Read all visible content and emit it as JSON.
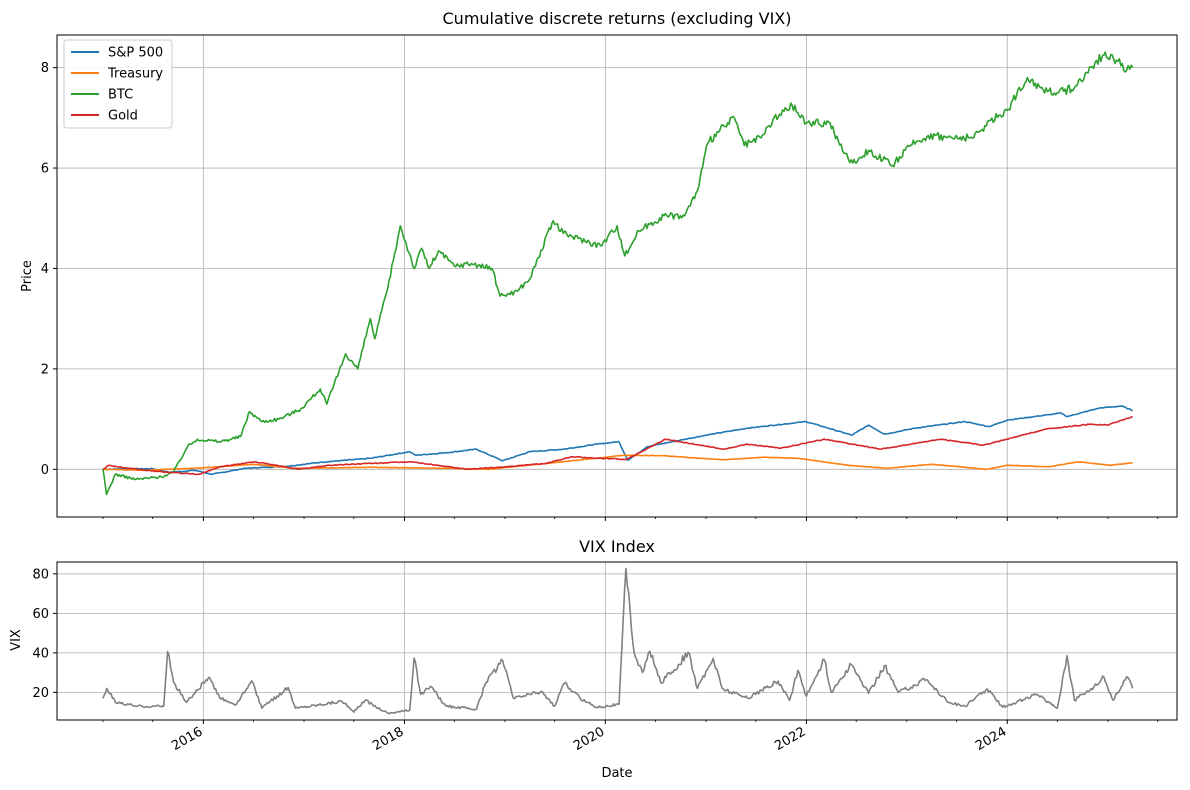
{
  "chart_data": [
    {
      "type": "line",
      "title": "Cumulative discrete returns (excluding VIX)",
      "xlabel": "",
      "ylabel": "Price",
      "ylim": [
        -0.95,
        8.65
      ],
      "xlim": [
        "2014-07-18",
        "2025-09-09"
      ],
      "yticks": [
        0,
        2,
        4,
        6,
        8
      ],
      "grid": true,
      "legend": "top-left",
      "series": [
        {
          "name": "S&P 500",
          "color": "#1f77b4",
          "points": [
            [
              "2015-01-01",
              0.0
            ],
            [
              "2015-04-01",
              0.01
            ],
            [
              "2015-07-01",
              0.01
            ],
            [
              "2015-09-01",
              -0.06
            ],
            [
              "2015-12-01",
              -0.02
            ],
            [
              "2016-02-01",
              -0.1
            ],
            [
              "2016-06-01",
              0.02
            ],
            [
              "2016-11-01",
              0.06
            ],
            [
              "2017-03-01",
              0.14
            ],
            [
              "2017-09-01",
              0.22
            ],
            [
              "2018-01-20",
              0.35
            ],
            [
              "2018-02-10",
              0.28
            ],
            [
              "2018-06-01",
              0.33
            ],
            [
              "2018-09-20",
              0.4
            ],
            [
              "2018-12-24",
              0.17
            ],
            [
              "2019-04-01",
              0.35
            ],
            [
              "2019-08-01",
              0.4
            ],
            [
              "2019-12-01",
              0.5
            ],
            [
              "2020-02-19",
              0.55
            ],
            [
              "2020-03-23",
              0.18
            ],
            [
              "2020-06-01",
              0.45
            ],
            [
              "2020-09-01",
              0.55
            ],
            [
              "2021-01-01",
              0.68
            ],
            [
              "2021-06-01",
              0.82
            ],
            [
              "2021-12-31",
              0.95
            ],
            [
              "2022-06-15",
              0.68
            ],
            [
              "2022-08-15",
              0.88
            ],
            [
              "2022-10-12",
              0.7
            ],
            [
              "2023-02-01",
              0.82
            ],
            [
              "2023-07-31",
              0.95
            ],
            [
              "2023-10-27",
              0.85
            ],
            [
              "2024-01-01",
              0.98
            ],
            [
              "2024-07-16",
              1.12
            ],
            [
              "2024-08-05",
              1.05
            ],
            [
              "2024-12-01",
              1.22
            ],
            [
              "2025-02-19",
              1.26
            ],
            [
              "2025-04-01",
              1.17
            ]
          ]
        },
        {
          "name": "Treasury",
          "color": "#ff7f0e",
          "points": [
            [
              "2015-01-01",
              0.0
            ],
            [
              "2015-06-01",
              -0.02
            ],
            [
              "2016-01-01",
              0.03
            ],
            [
              "2016-07-01",
              0.1
            ],
            [
              "2016-12-01",
              0.02
            ],
            [
              "2017-09-01",
              0.04
            ],
            [
              "2018-06-01",
              0.02
            ],
            [
              "2018-11-01",
              0.0
            ],
            [
              "2019-08-01",
              0.15
            ],
            [
              "2020-03-09",
              0.28
            ],
            [
              "2020-08-01",
              0.27
            ],
            [
              "2021-03-01",
              0.19
            ],
            [
              "2021-08-01",
              0.24
            ],
            [
              "2021-12-01",
              0.22
            ],
            [
              "2022-06-01",
              0.08
            ],
            [
              "2022-10-20",
              0.02
            ],
            [
              "2023-04-01",
              0.1
            ],
            [
              "2023-10-19",
              0.0
            ],
            [
              "2024-01-01",
              0.08
            ],
            [
              "2024-06-01",
              0.05
            ],
            [
              "2024-09-15",
              0.15
            ],
            [
              "2025-01-10",
              0.08
            ],
            [
              "2025-04-01",
              0.13
            ]
          ]
        },
        {
          "name": "BTC",
          "color": "#2ca02c",
          "points": [
            [
              "2015-01-01",
              0.0
            ],
            [
              "2015-01-14",
              -0.5
            ],
            [
              "2015-02-15",
              -0.1
            ],
            [
              "2015-05-01",
              -0.2
            ],
            [
              "2015-08-01",
              -0.15
            ],
            [
              "2015-09-15",
              -0.05
            ],
            [
              "2015-11-04",
              0.45
            ],
            [
              "2015-12-10",
              0.6
            ],
            [
              "2016-03-01",
              0.55
            ],
            [
              "2016-05-15",
              0.65
            ],
            [
              "2016-06-17",
              1.15
            ],
            [
              "2016-08-01",
              0.95
            ],
            [
              "2016-10-01",
              1.0
            ],
            [
              "2016-12-20",
              1.2
            ],
            [
              "2017-03-01",
              1.6
            ],
            [
              "2017-03-25",
              1.3
            ],
            [
              "2017-06-01",
              2.3
            ],
            [
              "2017-07-15",
              2.0
            ],
            [
              "2017-08-30",
              3.0
            ],
            [
              "2017-09-15",
              2.6
            ],
            [
              "2017-11-01",
              3.6
            ],
            [
              "2017-12-17",
              4.85
            ],
            [
              "2018-02-06",
              4.0
            ],
            [
              "2018-03-05",
              4.4
            ],
            [
              "2018-04-01",
              4.0
            ],
            [
              "2018-05-05",
              4.35
            ],
            [
              "2018-07-01",
              4.05
            ],
            [
              "2018-09-01",
              4.1
            ],
            [
              "2018-11-15",
              4.0
            ],
            [
              "2018-12-15",
              3.45
            ],
            [
              "2019-02-15",
              3.55
            ],
            [
              "2019-04-02",
              3.8
            ],
            [
              "2019-06-26",
              4.95
            ],
            [
              "2019-08-01",
              4.7
            ],
            [
              "2019-09-24",
              4.6
            ],
            [
              "2019-12-15",
              4.45
            ],
            [
              "2020-02-13",
              4.85
            ],
            [
              "2020-03-12",
              4.25
            ],
            [
              "2020-05-01",
              4.75
            ],
            [
              "2020-08-01",
              5.05
            ],
            [
              "2020-10-15",
              5.05
            ],
            [
              "2020-12-01",
              5.55
            ],
            [
              "2021-01-08",
              6.5
            ],
            [
              "2021-02-20",
              6.75
            ],
            [
              "2021-04-14",
              7.0
            ],
            [
              "2021-05-20",
              6.45
            ],
            [
              "2021-07-20",
              6.6
            ],
            [
              "2021-09-01",
              6.95
            ],
            [
              "2021-11-10",
              7.25
            ],
            [
              "2021-12-31",
              6.9
            ],
            [
              "2022-03-28",
              6.9
            ],
            [
              "2022-05-12",
              6.35
            ],
            [
              "2022-06-18",
              6.1
            ],
            [
              "2022-08-15",
              6.35
            ],
            [
              "2022-11-10",
              6.05
            ],
            [
              "2023-01-15",
              6.45
            ],
            [
              "2023-03-20",
              6.65
            ],
            [
              "2023-06-15",
              6.6
            ],
            [
              "2023-09-01",
              6.6
            ],
            [
              "2023-11-01",
              6.95
            ],
            [
              "2024-01-01",
              7.15
            ],
            [
              "2024-03-14",
              7.8
            ],
            [
              "2024-05-01",
              7.6
            ],
            [
              "2024-07-05",
              7.5
            ],
            [
              "2024-09-01",
              7.6
            ],
            [
              "2024-11-15",
              8.1
            ],
            [
              "2024-12-17",
              8.25
            ],
            [
              "2025-02-01",
              8.15
            ],
            [
              "2025-03-10",
              7.95
            ],
            [
              "2025-04-01",
              8.0
            ]
          ]
        },
        {
          "name": "Gold",
          "color": "#d62728",
          "points": [
            [
              "2015-01-01",
              0.0
            ],
            [
              "2015-01-22",
              0.08
            ],
            [
              "2015-04-01",
              0.02
            ],
            [
              "2015-08-01",
              -0.05
            ],
            [
              "2015-12-17",
              -0.1
            ],
            [
              "2016-03-01",
              0.05
            ],
            [
              "2016-07-06",
              0.15
            ],
            [
              "2016-12-15",
              0.0
            ],
            [
              "2017-04-01",
              0.08
            ],
            [
              "2017-09-08",
              0.12
            ],
            [
              "2018-01-25",
              0.15
            ],
            [
              "2018-08-16",
              0.0
            ],
            [
              "2019-01-01",
              0.05
            ],
            [
              "2019-06-01",
              0.12
            ],
            [
              "2019-09-04",
              0.25
            ],
            [
              "2019-12-01",
              0.22
            ],
            [
              "2020-03-19",
              0.2
            ],
            [
              "2020-08-06",
              0.6
            ],
            [
              "2021-03-08",
              0.4
            ],
            [
              "2021-06-01",
              0.5
            ],
            [
              "2021-09-30",
              0.42
            ],
            [
              "2022-03-08",
              0.6
            ],
            [
              "2022-09-28",
              0.4
            ],
            [
              "2023-05-04",
              0.6
            ],
            [
              "2023-10-05",
              0.48
            ],
            [
              "2024-01-01",
              0.6
            ],
            [
              "2024-05-20",
              0.8
            ],
            [
              "2024-10-30",
              0.9
            ],
            [
              "2024-12-30",
              0.88
            ],
            [
              "2025-04-01",
              1.05
            ]
          ]
        }
      ]
    },
    {
      "type": "line",
      "title": "VIX Index",
      "xlabel": "Date",
      "ylabel": "VIX",
      "ylim": [
        6.0,
        86.0
      ],
      "xlim": [
        "2014-07-18",
        "2025-09-09"
      ],
      "yticks": [
        20,
        40,
        60,
        80
      ],
      "xticks": [
        "2016",
        "2018",
        "2020",
        "2022",
        "2024"
      ],
      "grid": true,
      "series": [
        {
          "name": "",
          "color": "#808080",
          "points": [
            [
              "2015-01-01",
              17.0
            ],
            [
              "2015-01-15",
              22.0
            ],
            [
              "2015-02-15",
              15.0
            ],
            [
              "2015-05-01",
              13.0
            ],
            [
              "2015-08-10",
              13.0
            ],
            [
              "2015-08-24",
              40.7
            ],
            [
              "2015-09-15",
              25.0
            ],
            [
              "2015-11-01",
              15.0
            ],
            [
              "2016-01-20",
              27.6
            ],
            [
              "2016-03-01",
              17.0
            ],
            [
              "2016-05-01",
              14.0
            ],
            [
              "2016-06-24",
              25.8
            ],
            [
              "2016-08-01",
              12.0
            ],
            [
              "2016-11-04",
              22.5
            ],
            [
              "2016-12-01",
              12.0
            ],
            [
              "2017-05-18",
              15.6
            ],
            [
              "2017-07-01",
              10.0
            ],
            [
              "2017-08-11",
              16.0
            ],
            [
              "2017-11-01",
              9.5
            ],
            [
              "2018-01-20",
              11.0
            ],
            [
              "2018-02-05",
              37.3
            ],
            [
              "2018-03-01",
              19.0
            ],
            [
              "2018-04-05",
              23.0
            ],
            [
              "2018-06-01",
              13.0
            ],
            [
              "2018-09-20",
              11.5
            ],
            [
              "2018-10-24",
              25.0
            ],
            [
              "2018-12-24",
              36.1
            ],
            [
              "2019-02-01",
              17.0
            ],
            [
              "2019-05-13",
              20.5
            ],
            [
              "2019-07-01",
              13.0
            ],
            [
              "2019-08-05",
              24.6
            ],
            [
              "2019-10-01",
              17.0
            ],
            [
              "2019-12-01",
              12.5
            ],
            [
              "2020-02-20",
              14.0
            ],
            [
              "2020-03-16",
              82.7
            ],
            [
              "2020-04-15",
              40.0
            ],
            [
              "2020-05-15",
              30.0
            ],
            [
              "2020-06-11",
              40.8
            ],
            [
              "2020-07-20",
              25.0
            ],
            [
              "2020-09-08",
              31.5
            ],
            [
              "2020-10-28",
              40.3
            ],
            [
              "2020-12-01",
              22.0
            ],
            [
              "2021-01-27",
              37.2
            ],
            [
              "2021-03-01",
              22.0
            ],
            [
              "2021-06-01",
              17.0
            ],
            [
              "2021-09-20",
              25.7
            ],
            [
              "2021-11-01",
              16.0
            ],
            [
              "2021-12-01",
              31.1
            ],
            [
              "2022-01-01",
              18.0
            ],
            [
              "2022-03-07",
              36.5
            ],
            [
              "2022-04-01",
              20.0
            ],
            [
              "2022-06-13",
              34.0
            ],
            [
              "2022-08-15",
              19.5
            ],
            [
              "2022-10-12",
              33.6
            ],
            [
              "2022-12-01",
              20.0
            ],
            [
              "2023-03-13",
              26.5
            ],
            [
              "2023-06-01",
              15.0
            ],
            [
              "2023-08-01",
              13.0
            ],
            [
              "2023-10-20",
              21.7
            ],
            [
              "2023-12-15",
              12.5
            ],
            [
              "2024-04-19",
              19.0
            ],
            [
              "2024-07-01",
              12.0
            ],
            [
              "2024-08-05",
              38.6
            ],
            [
              "2024-09-01",
              16.0
            ],
            [
              "2024-11-01",
              21.9
            ],
            [
              "2024-12-18",
              27.6
            ],
            [
              "2025-01-20",
              16.0
            ],
            [
              "2025-03-10",
              27.9
            ],
            [
              "2025-04-01",
              22.0
            ]
          ]
        }
      ]
    }
  ]
}
